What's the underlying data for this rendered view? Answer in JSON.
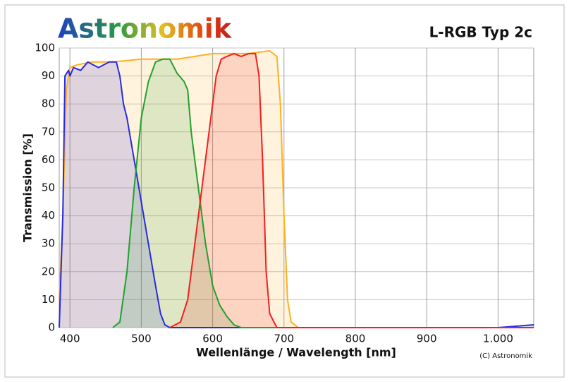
{
  "chart_data": {
    "type": "line",
    "logo": "Astronomik",
    "title": "L-RGB Typ 2c",
    "xlabel": "Wellenlänge / Wavelength [nm]",
    "ylabel": "Transmission [%]",
    "credit": "(C) Astronomik",
    "xlim": [
      385,
      1050
    ],
    "ylim": [
      0,
      100
    ],
    "xticks": [
      400,
      500,
      600,
      700,
      800,
      900,
      {
        "value": 1000,
        "label": "1.000"
      }
    ],
    "yticks": [
      0,
      10,
      20,
      30,
      40,
      50,
      60,
      70,
      80,
      90,
      100
    ],
    "grid": true,
    "series": [
      {
        "name": "L",
        "color": "#ffb020",
        "x": [
          385,
          390,
          395,
          400,
          410,
          430,
          460,
          500,
          550,
          600,
          650,
          680,
          690,
          695,
          700,
          705,
          710,
          720,
          1050
        ],
        "values": [
          10,
          40,
          85,
          93,
          94,
          95,
          95,
          96,
          96,
          98,
          98,
          99,
          97,
          80,
          40,
          10,
          2,
          0,
          0
        ]
      },
      {
        "name": "B",
        "color": "#2a2ae0",
        "x": [
          385,
          390,
          393,
          398,
          400,
          405,
          415,
          425,
          440,
          455,
          465,
          470,
          475,
          480,
          490,
          500,
          510,
          520,
          527,
          533,
          540,
          1000,
          1050
        ],
        "values": [
          0,
          40,
          90,
          92,
          90,
          93,
          92,
          95,
          93,
          95,
          95,
          90,
          80,
          75,
          60,
          45,
          30,
          15,
          5,
          1,
          0,
          0,
          1
        ]
      },
      {
        "name": "G",
        "color": "#22a030",
        "x": [
          460,
          470,
          480,
          490,
          500,
          510,
          520,
          530,
          540,
          550,
          560,
          565,
          570,
          580,
          590,
          600,
          610,
          620,
          630,
          640,
          1050
        ],
        "values": [
          0,
          2,
          20,
          50,
          75,
          88,
          95,
          96,
          96,
          91,
          88,
          85,
          70,
          50,
          30,
          15,
          8,
          4,
          1,
          0,
          0
        ]
      },
      {
        "name": "R",
        "color": "#f02020",
        "x": [
          540,
          555,
          565,
          575,
          585,
          595,
          605,
          612,
          620,
          630,
          640,
          650,
          660,
          665,
          670,
          675,
          680,
          690,
          1050
        ],
        "values": [
          0,
          2,
          10,
          30,
          50,
          70,
          90,
          96,
          97,
          98,
          97,
          98,
          98,
          90,
          60,
          20,
          5,
          0,
          0
        ]
      }
    ]
  }
}
